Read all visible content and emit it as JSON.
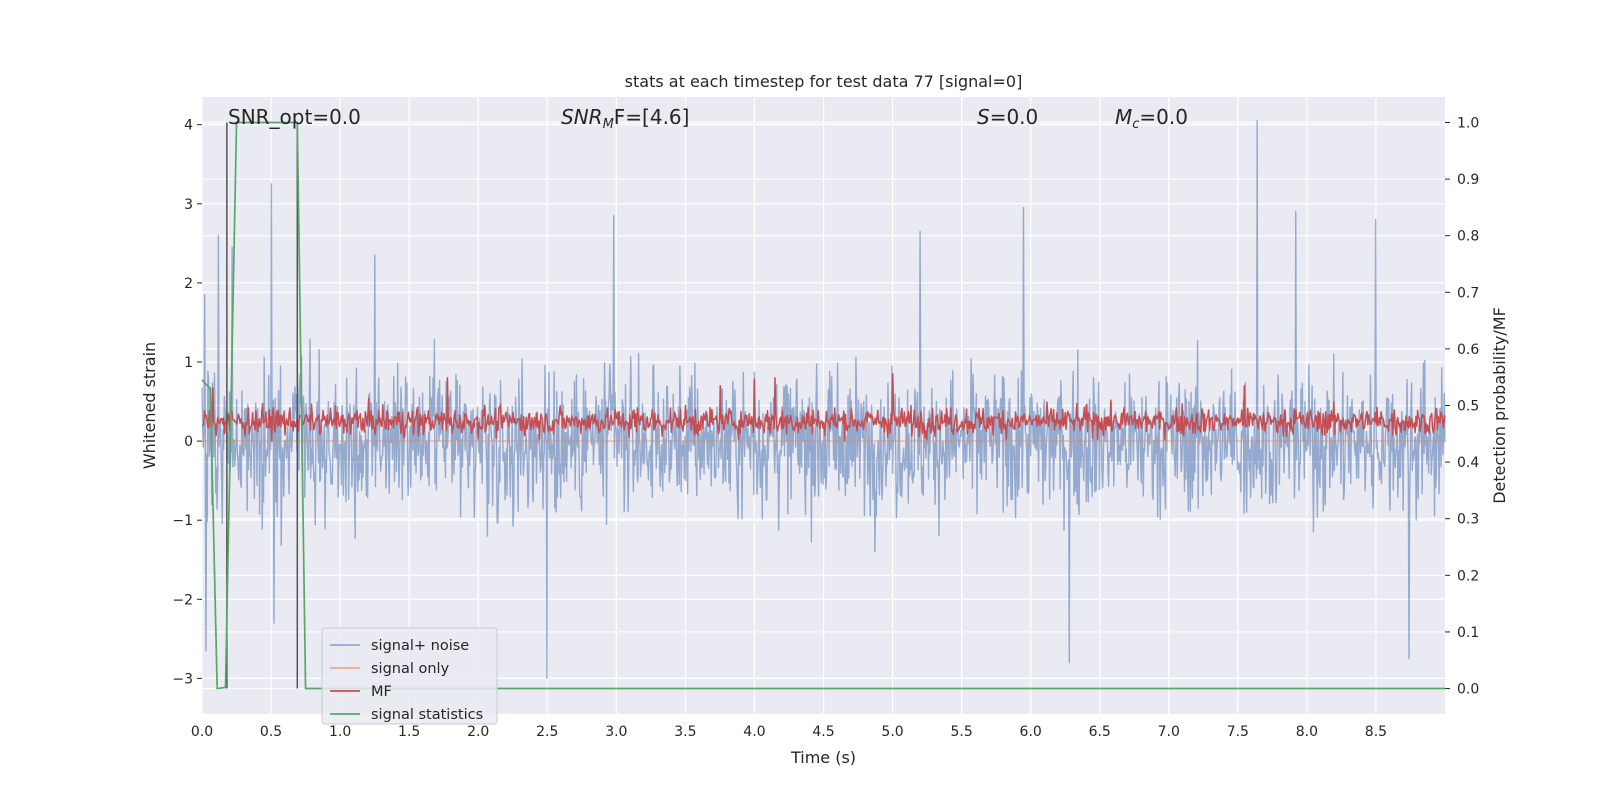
{
  "chart_data": {
    "type": "line",
    "title": "stats at each timestep for test data 77 [signal=0]",
    "xlabel": "Time (s)",
    "ylabel_left": "Whitened strain",
    "ylabel_right": "Detection probability/MF",
    "xlim": [
      0.0,
      9.0
    ],
    "ylim_left": [
      -3.45,
      4.35
    ],
    "ylim_right": [
      -0.045,
      1.045
    ],
    "x_ticks": [
      0.0,
      0.5,
      1.0,
      1.5,
      2.0,
      2.5,
      3.0,
      3.5,
      4.0,
      4.5,
      5.0,
      5.5,
      6.0,
      6.5,
      7.0,
      7.5,
      8.0,
      8.5
    ],
    "x_tick_labels": [
      "0.0",
      "0.5",
      "1.0",
      "1.5",
      "2.0",
      "2.5",
      "3.0",
      "3.5",
      "4.0",
      "4.5",
      "5.0",
      "5.5",
      "6.0",
      "6.5",
      "7.0",
      "7.5",
      "8.0",
      "8.5"
    ],
    "y_left_ticks": [
      -3,
      -2,
      -1,
      0,
      1,
      2,
      3,
      4
    ],
    "y_left_tick_labels": [
      "−3",
      "−2",
      "−1",
      "0",
      "1",
      "2",
      "3",
      "4"
    ],
    "y_right_ticks": [
      0.0,
      0.1,
      0.2,
      0.3,
      0.4,
      0.5,
      0.6,
      0.7,
      0.8,
      0.9,
      1.0
    ],
    "y_right_tick_labels": [
      "0.0",
      "0.1",
      "0.2",
      "0.3",
      "0.4",
      "0.5",
      "0.6",
      "0.7",
      "0.8",
      "0.9",
      "1.0"
    ],
    "grid": true,
    "legend_placement": "lower-left",
    "annotations": {
      "snr_opt": "SNR_opt=0.0",
      "snr_mf_main": "SNR",
      "snr_mf_sub": "M",
      "snr_mf_rest": "F=[4.6]",
      "s_main": "S",
      "s_rest": "=0.0",
      "mc_main": "M",
      "mc_sub": "c",
      "mc_rest": "=0.0"
    },
    "series": [
      {
        "name": "signal+ noise",
        "color": "#4c72b0",
        "axis": "left",
        "description": "whitened strain noise, roughly within -1.8..1.8 with spikes",
        "peaks": [
          {
            "x": 0.02,
            "y": 1.85
          },
          {
            "x": 0.03,
            "y": -2.65
          },
          {
            "x": 0.12,
            "y": 2.6
          },
          {
            "x": 0.22,
            "y": 2.45
          },
          {
            "x": 0.5,
            "y": 3.25
          },
          {
            "x": 0.52,
            "y": -2.3
          },
          {
            "x": 1.25,
            "y": 2.35
          },
          {
            "x": 2.5,
            "y": -3.0
          },
          {
            "x": 2.98,
            "y": 2.85
          },
          {
            "x": 5.2,
            "y": 2.65
          },
          {
            "x": 5.95,
            "y": 2.95
          },
          {
            "x": 6.28,
            "y": -2.8
          },
          {
            "x": 7.64,
            "y": 4.05
          },
          {
            "x": 7.92,
            "y": 2.9
          },
          {
            "x": 8.5,
            "y": 2.8
          },
          {
            "x": 8.74,
            "y": -2.75
          }
        ]
      },
      {
        "name": "signal only",
        "color": "#dd8452",
        "axis": "left",
        "x": [
          0.0,
          9.0
        ],
        "values": [
          0.0,
          0.0
        ]
      },
      {
        "name": "MF",
        "color": "#c44e52",
        "axis": "left",
        "description": "matched filter output, mostly within 0.0..0.5",
        "peaks": [
          {
            "x": 0.08,
            "y": 0.67
          },
          {
            "x": 1.78,
            "y": 0.8
          },
          {
            "x": 3.75,
            "y": 0.7
          },
          {
            "x": 4.0,
            "y": 0.78
          },
          {
            "x": 4.15,
            "y": 0.8
          },
          {
            "x": 5.0,
            "y": 0.85
          },
          {
            "x": 7.55,
            "y": 0.7
          }
        ]
      },
      {
        "name": "signal statistics",
        "color": "#55a868",
        "axis": "right",
        "x": [
          0.0,
          0.06,
          0.11,
          0.17,
          0.25,
          0.69,
          0.75,
          9.0
        ],
        "values": [
          0.545,
          0.53,
          0.0,
          0.002,
          1.0,
          1.0,
          0.0,
          0.0
        ]
      }
    ],
    "vertical_lines": [
      {
        "x": 0.18,
        "color": "#555555"
      },
      {
        "x": 0.69,
        "color": "#555555"
      }
    ]
  }
}
